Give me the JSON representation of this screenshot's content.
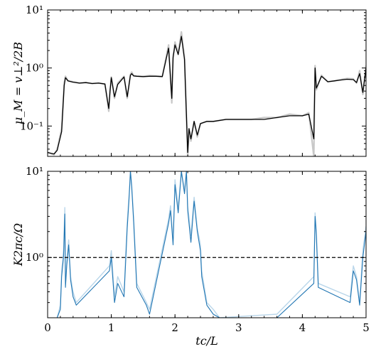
{
  "chart_data": [
    {
      "type": "line",
      "ylabel": "μ_M = v⊥²/2B",
      "y_scale": "log",
      "ylim": [
        0.03,
        10
      ],
      "xlim": [
        0,
        5
      ],
      "x_tick_labels": [],
      "y_tick_labels": [
        {
          "value": 0.1,
          "label": "10⁻¹"
        },
        {
          "value": 1,
          "label": "10⁰"
        },
        {
          "value": 10,
          "label": "10¹"
        }
      ],
      "series": [
        {
          "color": "#c8c8c8",
          "x": [
            0,
            0.1,
            0.15,
            0.22,
            0.26,
            0.28,
            0.32,
            0.4,
            0.5,
            0.6,
            0.7,
            0.8,
            0.9,
            0.96,
            0.98,
            1.0,
            1.05,
            1.1,
            1.2,
            1.25,
            1.3,
            1.32,
            1.35,
            1.4,
            1.5,
            1.6,
            1.7,
            1.8,
            1.9,
            1.95,
            1.97,
            2.0,
            2.05,
            2.1,
            2.15,
            2.2,
            2.22,
            2.25,
            2.3,
            2.35,
            2.4,
            2.5,
            2.6,
            2.8,
            3.0,
            3.2,
            3.4,
            3.6,
            3.8,
            4.0,
            4.1,
            4.18,
            4.2,
            4.22,
            4.3,
            4.4,
            4.5,
            4.6,
            4.7,
            4.8,
            4.85,
            4.9,
            4.95,
            5.0
          ],
          "y": [
            0.035,
            0.032,
            0.04,
            0.09,
            0.55,
            0.72,
            0.6,
            0.58,
            0.55,
            0.56,
            0.54,
            0.55,
            0.53,
            0.18,
            0.4,
            0.7,
            0.3,
            0.55,
            0.72,
            0.3,
            0.78,
            0.85,
            0.74,
            0.73,
            0.72,
            0.74,
            0.73,
            0.72,
            2.5,
            0.25,
            1.6,
            2.8,
            1.8,
            4.2,
            1.5,
            0.03,
            0.09,
            0.055,
            0.12,
            0.065,
            0.11,
            0.12,
            0.12,
            0.13,
            0.13,
            0.13,
            0.14,
            0.14,
            0.16,
            0.15,
            0.17,
            0.03,
            1.1,
            0.42,
            0.75,
            0.58,
            0.6,
            0.63,
            0.66,
            0.65,
            0.55,
            0.9,
            0.35,
            1.1
          ]
        },
        {
          "color": "#000000",
          "x": [
            0,
            0.1,
            0.15,
            0.22,
            0.26,
            0.28,
            0.32,
            0.4,
            0.5,
            0.6,
            0.7,
            0.8,
            0.9,
            0.96,
            0.98,
            1.0,
            1.05,
            1.1,
            1.2,
            1.25,
            1.3,
            1.32,
            1.35,
            1.4,
            1.5,
            1.6,
            1.7,
            1.8,
            1.9,
            1.95,
            1.97,
            2.0,
            2.05,
            2.1,
            2.15,
            2.2,
            2.22,
            2.25,
            2.3,
            2.35,
            2.4,
            2.5,
            2.6,
            2.8,
            3.0,
            3.2,
            3.4,
            3.6,
            3.8,
            4.0,
            4.1,
            4.18,
            4.2,
            4.22,
            4.3,
            4.4,
            4.5,
            4.6,
            4.7,
            4.8,
            4.85,
            4.9,
            4.95,
            5.0
          ],
          "y": [
            0.035,
            0.033,
            0.038,
            0.08,
            0.5,
            0.68,
            0.6,
            0.57,
            0.55,
            0.56,
            0.54,
            0.55,
            0.53,
            0.2,
            0.4,
            0.68,
            0.32,
            0.52,
            0.7,
            0.32,
            0.75,
            0.8,
            0.73,
            0.72,
            0.71,
            0.72,
            0.72,
            0.71,
            2.2,
            0.3,
            1.5,
            2.5,
            1.7,
            3.5,
            1.4,
            0.035,
            0.09,
            0.06,
            0.12,
            0.07,
            0.11,
            0.12,
            0.12,
            0.13,
            0.13,
            0.13,
            0.13,
            0.14,
            0.15,
            0.15,
            0.16,
            0.06,
            1.0,
            0.45,
            0.72,
            0.58,
            0.6,
            0.62,
            0.64,
            0.63,
            0.56,
            0.8,
            0.38,
            1.0
          ]
        }
      ]
    },
    {
      "type": "line",
      "xlabel": "tc/L",
      "ylabel": "K2πc/Ω",
      "y_scale": "log",
      "ylim": [
        0.2,
        10
      ],
      "xlim": [
        0,
        5
      ],
      "reference_line": {
        "y": 1,
        "style": "dashed",
        "color": "#000000"
      },
      "x_tick_labels": [
        {
          "value": 0,
          "label": "0"
        },
        {
          "value": 1,
          "label": "1"
        },
        {
          "value": 2,
          "label": "2"
        },
        {
          "value": 3,
          "label": "3"
        },
        {
          "value": 4,
          "label": "4"
        },
        {
          "value": 5,
          "label": "5"
        }
      ],
      "y_tick_labels": [
        {
          "value": 1,
          "label": "10⁰"
        },
        {
          "value": 10,
          "label": "10¹"
        }
      ],
      "series": [
        {
          "color": "#b9d6ea",
          "x": [
            0.15,
            0.2,
            0.22,
            0.25,
            0.27,
            0.28,
            0.3,
            0.33,
            0.36,
            0.4,
            0.45,
            0.97,
            1.0,
            1.05,
            1.1,
            1.2,
            1.25,
            1.28,
            1.3,
            1.32,
            1.35,
            1.4,
            1.55,
            1.6,
            1.9,
            1.93,
            1.97,
            2.0,
            2.05,
            2.1,
            2.15,
            2.18,
            2.2,
            2.25,
            2.3,
            2.35,
            2.4,
            2.42,
            2.5,
            2.6,
            2.7,
            3.6,
            4.18,
            4.2,
            4.22,
            4.25,
            4.75,
            4.8,
            4.85,
            4.9,
            4.95,
            5.0
          ],
          "y": [
            0.2,
            0.28,
            0.7,
            1.2,
            3.8,
            0.5,
            0.9,
            1.6,
            0.6,
            0.4,
            0.3,
            0.8,
            1.2,
            0.35,
            0.6,
            0.4,
            2.6,
            5.5,
            10,
            7,
            3,
            0.5,
            0.3,
            0.25,
            2.8,
            4,
            1.6,
            8,
            3.8,
            10,
            6,
            10,
            4,
            1.8,
            5,
            2.2,
            1.4,
            0.7,
            0.3,
            0.25,
            0.2,
            0.22,
            0.6,
            3.3,
            2,
            0.5,
            0.35,
            0.8,
            0.6,
            0.3,
            1.2,
            2.3
          ]
        },
        {
          "color": "#2176b3",
          "x": [
            0.15,
            0.2,
            0.22,
            0.25,
            0.27,
            0.28,
            0.3,
            0.33,
            0.36,
            0.4,
            0.45,
            0.97,
            1.0,
            1.05,
            1.1,
            1.2,
            1.25,
            1.28,
            1.3,
            1.32,
            1.35,
            1.4,
            1.55,
            1.6,
            1.9,
            1.93,
            1.97,
            2.0,
            2.05,
            2.1,
            2.15,
            2.18,
            2.2,
            2.25,
            2.3,
            2.35,
            2.4,
            2.42,
            2.5,
            2.6,
            2.7,
            3.6,
            4.18,
            4.2,
            4.22,
            4.25,
            4.75,
            4.8,
            4.85,
            4.9,
            4.95,
            5.0
          ],
          "y": [
            0.2,
            0.25,
            0.6,
            1.0,
            3.2,
            0.45,
            0.8,
            1.4,
            0.55,
            0.35,
            0.28,
            0.7,
            1.0,
            0.3,
            0.5,
            0.35,
            2.2,
            5,
            10,
            6.5,
            2.6,
            0.45,
            0.28,
            0.22,
            2.5,
            3.5,
            1.4,
            7,
            3.3,
            10,
            5.5,
            10,
            3.5,
            1.5,
            4.5,
            2,
            1.2,
            0.6,
            0.28,
            0.22,
            0.2,
            0.2,
            0.5,
            3,
            1.8,
            0.45,
            0.3,
            0.7,
            0.55,
            0.28,
            1,
            2
          ]
        }
      ]
    }
  ]
}
